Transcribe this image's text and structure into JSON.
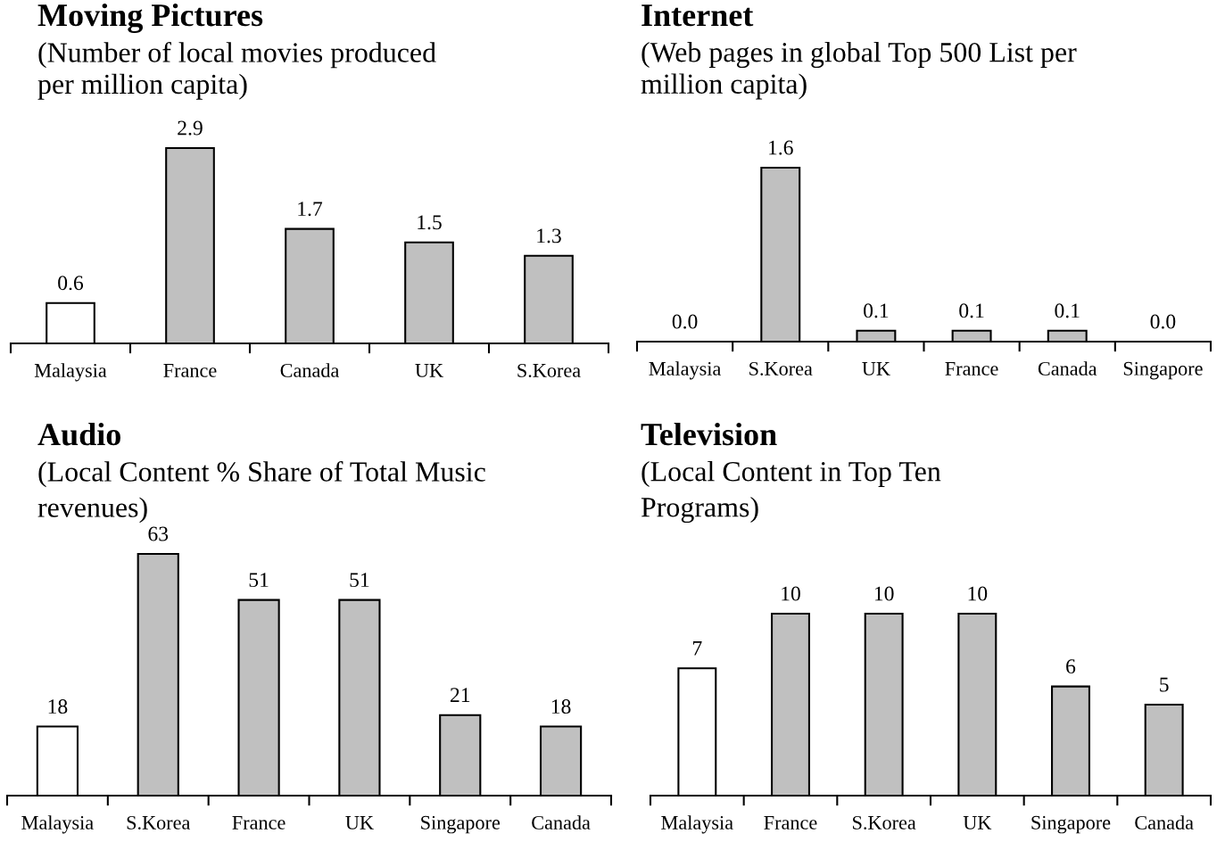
{
  "chart_data": [
    {
      "type": "bar",
      "title": "Moving Pictures",
      "subtitle": "(Number of local movies produced\nper million capita)",
      "categories": [
        "Malaysia",
        "France",
        "Canada",
        "UK",
        "S.Korea"
      ],
      "values": [
        0.6,
        2.9,
        1.7,
        1.5,
        1.3
      ],
      "colors": [
        "#ffffff",
        "#c0c0c0",
        "#c0c0c0",
        "#c0c0c0",
        "#c0c0c0"
      ],
      "data_labels": true
    },
    {
      "type": "bar",
      "title": "Internet",
      "subtitle": "(Web pages in global Top 500 List per\nmillion capita)",
      "categories": [
        "Malaysia",
        "S.Korea",
        "UK",
        "France",
        "Canada",
        "Singapore"
      ],
      "values": [
        0.0,
        1.6,
        0.1,
        0.1,
        0.1,
        0.0
      ],
      "value_labels": [
        "0.0",
        "1.6",
        "0.1",
        "0.1",
        "0.1",
        "0.0"
      ],
      "colors": [
        "#ffffff",
        "#c0c0c0",
        "#c0c0c0",
        "#c0c0c0",
        "#c0c0c0",
        "#c0c0c0"
      ]
    },
    {
      "type": "bar",
      "title": "Audio",
      "subtitle": "(Local Content % Share of Total Music\nrevenues)",
      "categories": [
        "Malaysia",
        "S.Korea",
        "France",
        "UK",
        "Singapore",
        "Canada"
      ],
      "values": [
        18,
        63,
        51,
        51,
        21,
        18
      ],
      "colors": [
        "#ffffff",
        "#c0c0c0",
        "#c0c0c0",
        "#c0c0c0",
        "#c0c0c0",
        "#c0c0c0"
      ],
      "data_labels": true
    },
    {
      "type": "bar",
      "title": "Television",
      "subtitle": "(Local Content in Top Ten\nPrograms)",
      "categories": [
        "Malaysia",
        "France",
        "S.Korea",
        "UK",
        "Singapore",
        "Canada"
      ],
      "values": [
        7,
        10,
        10,
        10,
        6,
        5
      ],
      "colors": [
        "#ffffff",
        "#c0c0c0",
        "#c0c0c0",
        "#c0c0c0",
        "#c0c0c0",
        "#c0c0c0"
      ],
      "data_labels": true
    }
  ]
}
